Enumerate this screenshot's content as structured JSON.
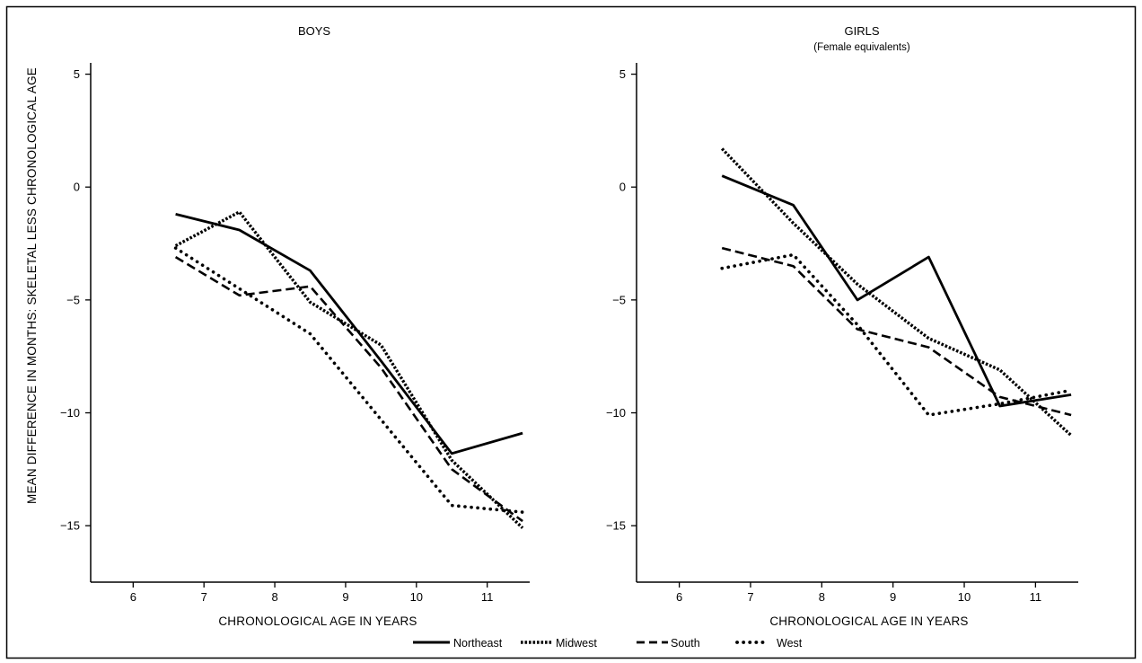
{
  "ylabel": "MEAN DIFFERENCE IN MONTHS: SKELETAL LESS CHRONOLOGICAL AGE",
  "legend": [
    {
      "name": "Northeast",
      "style": "solid"
    },
    {
      "name": "Midwest",
      "style": "dense-dotted"
    },
    {
      "name": "South",
      "style": "dashed"
    },
    {
      "name": "West",
      "style": "sparse-dotted"
    }
  ],
  "chart_data": [
    {
      "type": "line",
      "title": "BOYS",
      "subtitle": "",
      "xlabel": "CHRONOLOGICAL AGE IN YEARS",
      "ylabel": "MEAN DIFFERENCE IN MONTHS: SKELETAL LESS CHRONOLOGICAL AGE",
      "xlim": [
        5.4,
        11.6
      ],
      "ylim": [
        -17.5,
        5.5
      ],
      "xticks": [
        6,
        7,
        8,
        9,
        10,
        11
      ],
      "yticks": [
        5,
        0,
        -5,
        -10,
        -15
      ],
      "ytick_labels": [
        "5",
        "0",
        "-5",
        "-10",
        "-15"
      ],
      "series": [
        {
          "name": "Northeast",
          "x": [
            6.6,
            7.5,
            8.5,
            9.5,
            10.5,
            11.5
          ],
          "y": [
            -1.2,
            -1.9,
            -3.7,
            -7.7,
            -11.8,
            -10.9
          ]
        },
        {
          "name": "Midwest",
          "x": [
            6.6,
            7.5,
            8.5,
            9.5,
            10.5,
            11.5
          ],
          "y": [
            -2.6,
            -1.1,
            -5.1,
            -7.0,
            -12.1,
            -15.1
          ]
        },
        {
          "name": "South",
          "x": [
            6.6,
            7.5,
            8.5,
            9.5,
            10.5,
            11.5
          ],
          "y": [
            -3.1,
            -4.8,
            -4.4,
            -8.0,
            -12.5,
            -14.8
          ]
        },
        {
          "name": "West",
          "x": [
            6.6,
            7.5,
            8.5,
            9.5,
            10.5,
            11.5
          ],
          "y": [
            -2.7,
            -4.5,
            -6.5,
            -10.3,
            -14.1,
            -14.4
          ]
        }
      ]
    },
    {
      "type": "line",
      "title": "GIRLS",
      "subtitle": "(Female equivalents)",
      "xlabel": "CHRONOLOGICAL AGE IN YEARS",
      "ylabel": "",
      "xlim": [
        5.4,
        11.6
      ],
      "ylim": [
        -17.5,
        5.5
      ],
      "xticks": [
        6,
        7,
        8,
        9,
        10,
        11
      ],
      "yticks": [
        5,
        0,
        -5,
        -10,
        -15
      ],
      "ytick_labels": [
        "5",
        "0",
        "-5",
        "-10",
        "-15"
      ],
      "series": [
        {
          "name": "Northeast",
          "x": [
            6.6,
            7.6,
            8.5,
            9.5,
            10.5,
            11.5
          ],
          "y": [
            0.5,
            -0.8,
            -5.0,
            -3.1,
            -9.7,
            -9.2
          ]
        },
        {
          "name": "Midwest",
          "x": [
            6.6,
            7.6,
            8.5,
            9.5,
            10.5,
            11.5
          ],
          "y": [
            1.7,
            -1.6,
            -4.3,
            -6.7,
            -8.1,
            -11.0
          ]
        },
        {
          "name": "South",
          "x": [
            6.6,
            7.6,
            8.5,
            9.5,
            10.5,
            11.5
          ],
          "y": [
            -2.7,
            -3.5,
            -6.3,
            -7.1,
            -9.3,
            -10.1
          ]
        },
        {
          "name": "West",
          "x": [
            6.6,
            7.6,
            8.5,
            9.5,
            10.5,
            11.5
          ],
          "y": [
            -3.6,
            -3.0,
            -6.1,
            -10.1,
            -9.6,
            -9.0
          ]
        }
      ]
    }
  ]
}
